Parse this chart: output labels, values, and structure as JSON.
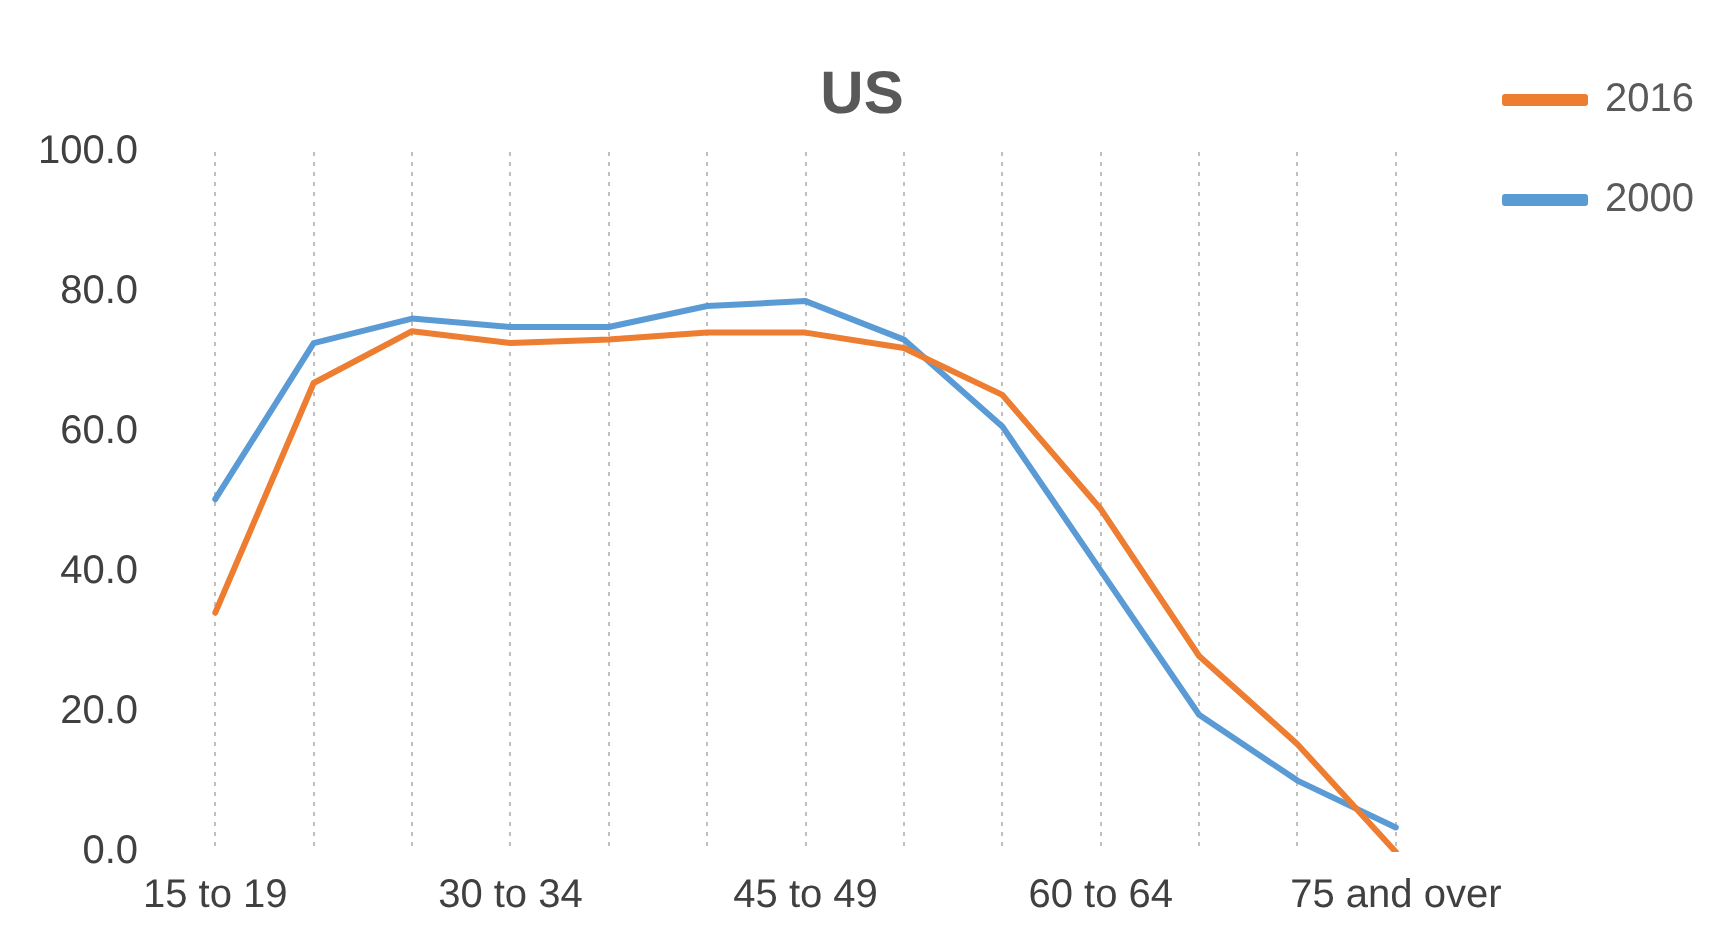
{
  "chart_data": {
    "type": "line",
    "title": "US",
    "categories": [
      "15 to 19",
      null,
      null,
      "30 to 34",
      null,
      null,
      "45 to 49",
      null,
      null,
      "60 to 64",
      null,
      null,
      "75 and over"
    ],
    "series": [
      {
        "name": "2016",
        "color": "#ed7d31",
        "values": [
          34.2,
          67,
          74.4,
          72.7,
          73.2,
          74.2,
          74.2,
          72,
          65.3,
          49,
          28,
          15.4,
          0
        ]
      },
      {
        "name": "2000",
        "color": "#5b9bd5",
        "values": [
          50.4,
          72.7,
          76.2,
          75,
          75,
          78,
          78.7,
          73.2,
          60.8,
          40.2,
          19.6,
          10.2,
          3.5
        ]
      }
    ],
    "ylim": [
      0,
      100
    ],
    "yticks": [
      {
        "value": 0,
        "label": "0.0"
      },
      {
        "value": 20,
        "label": "20.0"
      },
      {
        "value": 40,
        "label": "40.0"
      },
      {
        "value": 60,
        "label": "60.0"
      },
      {
        "value": 80,
        "label": "80.0"
      },
      {
        "value": 100,
        "label": "100.0"
      }
    ],
    "grid": "x",
    "legend": "top right",
    "marker": "none",
    "line_style": "solid"
  }
}
